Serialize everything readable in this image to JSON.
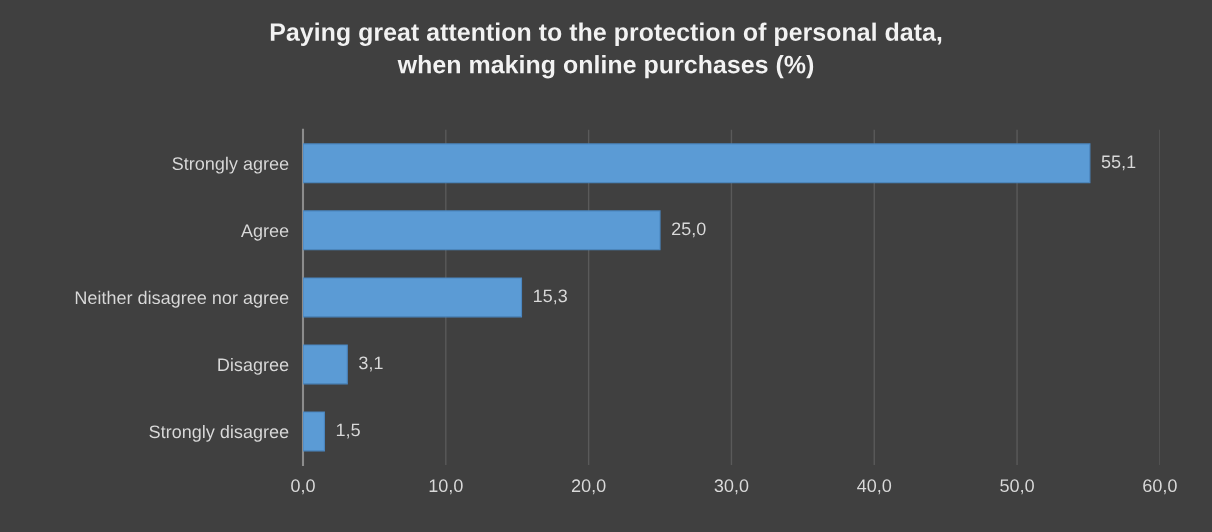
{
  "chart_data": {
    "type": "bar",
    "orientation": "horizontal",
    "title": "Paying great attention to the protection of personal data,\nwhen making online purchases (%)",
    "categories": [
      "Strongly agree",
      "Agree",
      "Neither disagree nor agree",
      "Disagree",
      "Strongly disagree"
    ],
    "values": [
      55.1,
      25.0,
      15.3,
      3.1,
      1.5
    ],
    "value_labels": [
      "55,1",
      "25,0",
      "15,3",
      "3,1",
      "1,5"
    ],
    "color": "#5b9bd5",
    "xlim": [
      0,
      60
    ],
    "xticks": [
      {
        "value": 0,
        "label": "0,0"
      },
      {
        "value": 10,
        "label": "10,0"
      },
      {
        "value": 20,
        "label": "20,0"
      },
      {
        "value": 30,
        "label": "30,0"
      },
      {
        "value": 40,
        "label": "40,0"
      },
      {
        "value": 50,
        "label": "50,0"
      },
      {
        "value": 60,
        "label": "60,0"
      }
    ],
    "grid": "x",
    "legend": false
  }
}
